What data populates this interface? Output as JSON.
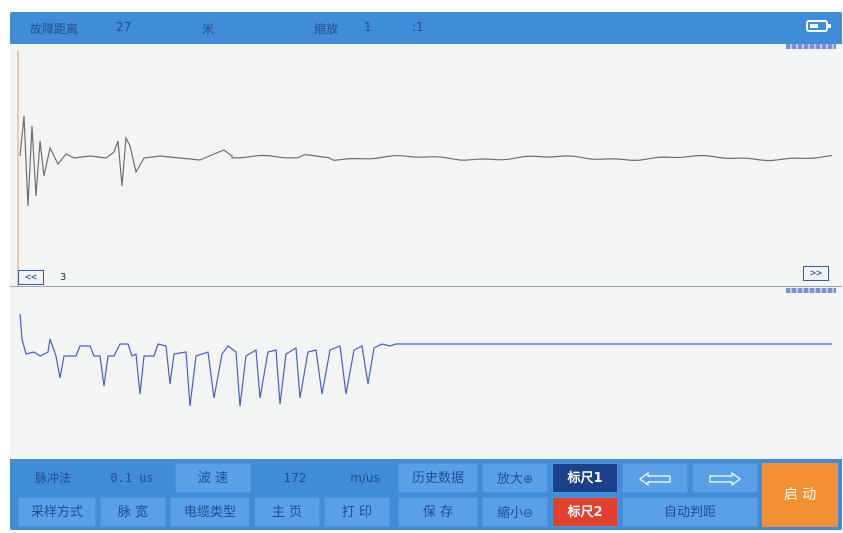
{
  "header": {
    "fault_distance_label": "故障距离",
    "fault_distance_value": "27",
    "distance_unit": "米",
    "zoom_label": "缩放",
    "zoom_value": "1",
    "zoom_ratio": ":1",
    "battery_icon": "battery-icon"
  },
  "upper_plot": {
    "prev_label": "<<",
    "page_number": "3",
    "next_label": ">>",
    "trace_color": "#6e6e6e"
  },
  "lower_plot": {
    "trace_color": "#4a5fd0"
  },
  "controls": {
    "method_label": "脉冲法",
    "pulse_width_value": "0.1 us",
    "wave_speed_button": "波 速",
    "wave_speed_value": "172",
    "wave_speed_unit": "m/us",
    "history_button": "历史数据",
    "zoom_in_button": "放大",
    "cursor1_button": "标尺1",
    "left_arrow_icon": "left-arrow-icon",
    "right_arrow_icon": "right-arrow-icon",
    "start_button": "启 动",
    "sampling_button": "采样方式",
    "pulse_width_button": "脉 宽",
    "cable_type_button": "电缆类型",
    "main_page_button": "主 页",
    "print_button": "打 印",
    "save_button": "保 存",
    "zoom_out_button": "缩小",
    "cursor2_button": "标尺2",
    "auto_judge_button": "自动判距"
  },
  "colors": {
    "bar_blue": "#3f8cd8",
    "button_blue": "#5aa0e6",
    "cursor1_dark": "#1c3f8c",
    "cursor2_red": "#e23f2c",
    "start_orange": "#f39033"
  }
}
